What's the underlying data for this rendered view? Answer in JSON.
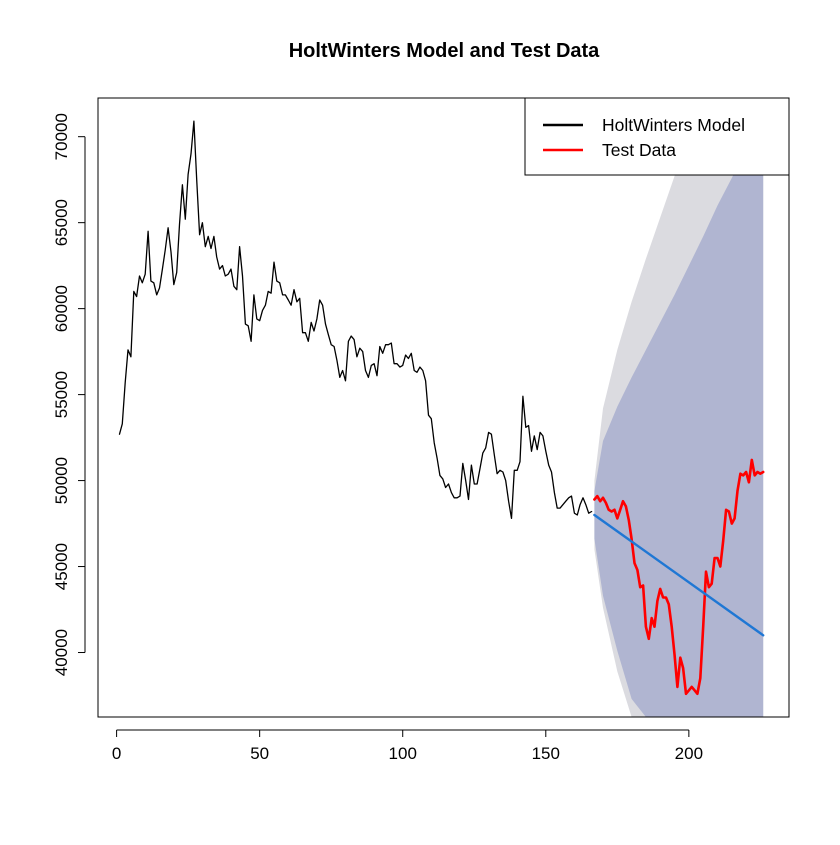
{
  "chart_data": {
    "type": "line",
    "title": "HoltWinters Model and Test Data",
    "xlabel": "",
    "ylabel": "",
    "xlim": [
      -6.5,
      235
    ],
    "ylim": [
      36250,
      72250
    ],
    "x_ticks": [
      0,
      50,
      100,
      150,
      200
    ],
    "y_ticks": [
      40000,
      45000,
      50000,
      55000,
      60000,
      65000,
      70000
    ],
    "grid": false,
    "legend_position": "top-right",
    "legend": [
      {
        "label": "HoltWinters Model",
        "color": "#000000"
      },
      {
        "label": "Test Data",
        "color": "#ff0000"
      }
    ],
    "colors": {
      "model": "#000000",
      "test": "#ff0000",
      "forecast": "#1f77d4",
      "band95": "#dbdbe0",
      "band80": "#b0b5d1"
    },
    "series": [
      {
        "name": "HoltWinters Model",
        "x": [
          1,
          2,
          3,
          4,
          5,
          6,
          7,
          8,
          9,
          10,
          11,
          12,
          13,
          14,
          15,
          16,
          17,
          18,
          19,
          20,
          21,
          22,
          23,
          24,
          25,
          26,
          27,
          28,
          29,
          30,
          31,
          32,
          33,
          34,
          35,
          36,
          37,
          38,
          39,
          40,
          41,
          42,
          43,
          44,
          45,
          46,
          47,
          48,
          49,
          50,
          51,
          52,
          53,
          54,
          55,
          56,
          57,
          58,
          59,
          60,
          61,
          62,
          63,
          64,
          65,
          66,
          67,
          68,
          69,
          70,
          71,
          72,
          73,
          74,
          75,
          76,
          77,
          78,
          79,
          80,
          81,
          82,
          83,
          84,
          85,
          86,
          87,
          88,
          89,
          90,
          91,
          92,
          93,
          94,
          95,
          96,
          97,
          98,
          99,
          100,
          101,
          102,
          103,
          104,
          105,
          106,
          107,
          108,
          109,
          110,
          111,
          112,
          113,
          114,
          115,
          116,
          117,
          118,
          119,
          120,
          121,
          122,
          123,
          124,
          125,
          126,
          127,
          128,
          129,
          130,
          131,
          132,
          133,
          134,
          135,
          136,
          137,
          138,
          139,
          140,
          141,
          142,
          143,
          144,
          145,
          146,
          147,
          148,
          149,
          150,
          151,
          152,
          153,
          154,
          155,
          156,
          157,
          158,
          159,
          160,
          161,
          162,
          163,
          164,
          165,
          166
        ],
        "values": [
          52700,
          53300,
          55700,
          57600,
          57200,
          61000,
          60700,
          61900,
          61500,
          62000,
          64500,
          61600,
          61500,
          60800,
          61200,
          62300,
          63400,
          64700,
          63300,
          61400,
          62100,
          64900,
          67200,
          65200,
          67800,
          69000,
          70900,
          67500,
          64300,
          65000,
          63600,
          64200,
          63500,
          64200,
          63000,
          62300,
          62500,
          61900,
          62000,
          62300,
          61300,
          61100,
          63600,
          61900,
          59100,
          59000,
          58100,
          60800,
          59400,
          59300,
          59900,
          60200,
          61000,
          60900,
          62700,
          61600,
          61500,
          60800,
          60800,
          60500,
          60200,
          61100,
          60400,
          60600,
          58600,
          58600,
          58100,
          59200,
          58700,
          59400,
          60500,
          60200,
          59100,
          58500,
          57900,
          57800,
          57000,
          56000,
          56400,
          55800,
          58100,
          58400,
          58200,
          57200,
          57700,
          57500,
          56400,
          56000,
          56700,
          56800,
          56100,
          57800,
          57400,
          57900,
          57900,
          58000,
          56800,
          56800,
          56600,
          56700,
          57300,
          57100,
          57400,
          56400,
          56300,
          56600,
          56400,
          55800,
          53800,
          53600,
          52200,
          51300,
          50300,
          50100,
          49600,
          49800,
          49300,
          49000,
          49000,
          49100,
          51000,
          50000,
          48900,
          50900,
          49800,
          49800,
          50700,
          51600,
          51900,
          52800,
          52700,
          51500,
          50400,
          50600,
          50500,
          50000,
          48800,
          47800,
          50600,
          50600,
          51100,
          54900,
          53100,
          53200,
          51700,
          52600,
          51800,
          52800,
          52600,
          51700,
          50900,
          50500,
          49300,
          48400,
          48400,
          48600,
          48800,
          49000,
          49100,
          48100,
          48000,
          48600,
          49000,
          48600,
          48100,
          48200
        ]
      },
      {
        "name": "Test Data",
        "x": [
          167,
          168,
          169,
          170,
          171,
          172,
          173,
          174,
          175,
          176,
          177,
          178,
          179,
          180,
          181,
          182,
          183,
          184,
          185,
          186,
          187,
          188,
          189,
          190,
          191,
          192,
          193,
          194,
          195,
          196,
          197,
          198,
          199,
          200,
          201,
          202,
          203,
          204,
          205,
          206,
          207,
          208,
          209,
          210,
          211,
          212,
          213,
          214,
          215,
          216,
          217,
          218,
          219,
          220,
          221,
          222,
          223,
          224,
          225,
          226
        ],
        "values": [
          48900,
          49100,
          48800,
          49000,
          48700,
          48300,
          48200,
          48300,
          47800,
          48300,
          48800,
          48500,
          47700,
          46600,
          45200,
          44800,
          43800,
          43900,
          41500,
          40800,
          42000,
          41500,
          43000,
          43700,
          43200,
          43200,
          42800,
          41500,
          39900,
          38000,
          39700,
          39100,
          37600,
          37800,
          38000,
          37800,
          37600,
          38500,
          41500,
          44700,
          43800,
          44000,
          45500,
          45500,
          45000,
          46500,
          48300,
          48200,
          47500,
          47800,
          49400,
          50400,
          50300,
          50500,
          49900,
          51200,
          50300,
          50500,
          50400,
          50500
        ]
      },
      {
        "name": "",
        "x": [
          167,
          226
        ],
        "values": [
          48000,
          41000
        ]
      }
    ],
    "intervals": {
      "x": [
        167,
        170,
        175,
        180,
        185,
        190,
        195,
        200,
        205,
        210,
        215,
        220,
        226
      ],
      "hi95": [
        50000,
        54200,
        57600,
        60400,
        62900,
        65300,
        67700,
        70100,
        72250,
        72250,
        72250,
        72250,
        72250
      ],
      "lo95": [
        46000,
        42600,
        38900,
        36250,
        36250,
        36250,
        36250,
        36250,
        36250,
        36250,
        36250,
        36250,
        36250
      ],
      "hi80": [
        49400,
        52300,
        54300,
        56000,
        57600,
        59200,
        60800,
        62500,
        64200,
        66000,
        67600,
        69300,
        70700
      ],
      "lo80": [
        46600,
        43300,
        40100,
        37300,
        36250,
        36250,
        36250,
        36250,
        36250,
        36250,
        36250,
        36250,
        36250
      ]
    }
  }
}
